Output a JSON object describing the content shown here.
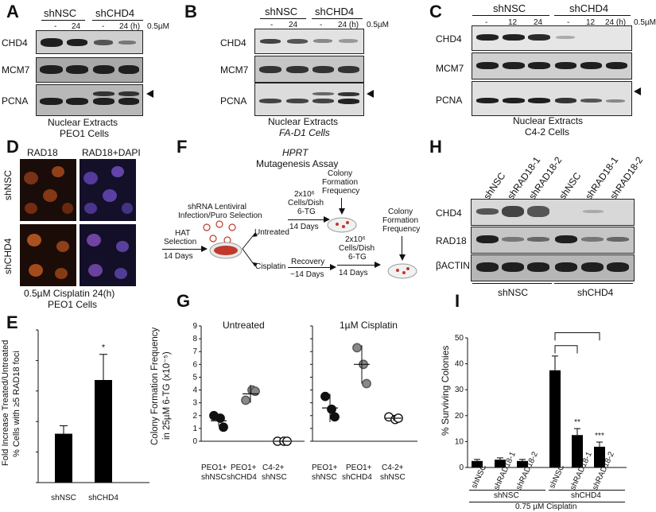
{
  "panelA": {
    "letter": "A",
    "groups": [
      "shNSC",
      "shCHD4"
    ],
    "times": [
      "-",
      "24",
      "-",
      "24 (h)"
    ],
    "dose": "0.5µM",
    "rows": [
      "CHD4",
      "MCM7",
      "PCNA"
    ],
    "caption1": "Nuclear Extracts",
    "caption2": "PEO1 Cells"
  },
  "panelB": {
    "letter": "B",
    "groups": [
      "shNSC",
      "shCHD4"
    ],
    "times": [
      "-",
      "24",
      "-",
      "24 (h)"
    ],
    "dose": "0.5µM",
    "rows": [
      "CHD4",
      "MCM7",
      "PCNA"
    ],
    "caption1": "Nuclear Extracts",
    "caption2": "FA-D1 Cells"
  },
  "panelC": {
    "letter": "C",
    "groups": [
      "shNSC",
      "shCHD4"
    ],
    "times": [
      "-",
      "12",
      "24",
      "-",
      "12",
      "24 (h)"
    ],
    "dose": "0.5µM",
    "rows": [
      "CHD4",
      "MCM7",
      "PCNA"
    ],
    "caption1": "Nuclear Extracts",
    "caption2": "C4-2 Cells"
  },
  "panelD": {
    "letter": "D",
    "cols": [
      "RAD18",
      "RAD18+DAPI"
    ],
    "rows": [
      "shNSC",
      "shCHD4"
    ],
    "caption1": "0.5µM Cisplatin 24(h)",
    "caption2": "PEO1 Cells"
  },
  "panelE": {
    "letter": "E",
    "ylabel1": "Fold Increase Treated/Untreated",
    "ylabel2": "% Cells with ≥5 RAD18 foci",
    "star": "*"
  },
  "panelF": {
    "letter": "F",
    "title1": "HPRT",
    "title2": "Mutagenesis Assay",
    "shrna1": "shRNA Lentiviral",
    "shrna2": "Infection/Puro Selection",
    "hat1": "HAT",
    "hat2": "Selection",
    "hat3": "14 Days",
    "untreated": "Untreated",
    "cisplatin": "Cisplatin",
    "plate1a": "2x10⁶",
    "plate1b": "Cells/Dish",
    "plate1c": "6-TG",
    "plate1d": "14 Days",
    "cff1": "Colony",
    "cff2": "Formation",
    "cff3": "Frequency",
    "recovery1": "Recovery",
    "recovery2": "~14 Days",
    "plate2a": "2x10⁶",
    "plate2b": "Cells/Dish",
    "plate2c": "6-TG",
    "plate2d": "14 Days",
    "cffb1": "Colony",
    "cffb2": "Formation",
    "cffb3": "Frequency"
  },
  "panelG": {
    "letter": "G",
    "ylabel1": "Colony Formation Frequency",
    "ylabel2": "in 25µM 6-TG (x10⁻⁵)",
    "left_title": "Untreated",
    "right_title": "1µM Cisplatin",
    "groups_left": [
      "PEO1+",
      "shNSC",
      "PEO1+",
      "shCHD4",
      "C4-2+",
      "shNSC"
    ],
    "groups_right": [
      "PEO1+",
      "shNSC",
      "PEO1+",
      "shCHD4",
      "C4-2+",
      "shNSC"
    ]
  },
  "panelH": {
    "letter": "H",
    "lanes": [
      "shNSC",
      "shRAD18-1",
      "shRAD18-2",
      "shNSC",
      "shRAD18-1",
      "shRAD18-2"
    ],
    "rows": [
      "CHD4",
      "RAD18",
      "βACTIN"
    ],
    "groups": [
      "shNSC",
      "shCHD4"
    ]
  },
  "panelI": {
    "letter": "I",
    "ylabel": "% Surviving Colonies",
    "lanes": [
      "shNSC",
      "shRAD18-1",
      "shRAD18-2",
      "shNSC",
      "shRAD18-1",
      "shRAD18-2"
    ],
    "groups": [
      "shNSC",
      "shCHD4"
    ],
    "treatment": "0.75 µM Cisplatin",
    "stars": [
      "**",
      "***"
    ]
  },
  "chart_data": [
    {
      "type": "bar",
      "panel": "E",
      "categories": [
        "shNSC",
        "shCHD4"
      ],
      "values": [
        0.8,
        1.68
      ],
      "errors": [
        0.13,
        0.42
      ],
      "ylim": [
        0,
        2.5
      ],
      "yticks": [
        0,
        0.5,
        1,
        1.5,
        2,
        2.5
      ],
      "ylabel": "Fold Increase Treated/Untreated % Cells with ≥5 RAD18 foci",
      "annotations": [
        {
          "category": "shCHD4",
          "text": "*"
        }
      ]
    },
    {
      "type": "scatter",
      "panel": "G-left",
      "title": "Untreated",
      "categories": [
        "PEO1+ shNSC",
        "PEO1+ shCHD4",
        "C4-2+ shNSC"
      ],
      "points": [
        [
          2.0,
          1.8,
          1.1
        ],
        [
          3.2,
          4.0,
          3.9
        ],
        [
          0.0,
          0.0,
          0.0
        ]
      ],
      "means": [
        1.6,
        3.7,
        0.0
      ],
      "errors": [
        0.4,
        0.7,
        0.05
      ],
      "ylim": [
        0,
        9
      ],
      "yticks": [
        0,
        1,
        2,
        3,
        4,
        5,
        6,
        7,
        8,
        9
      ],
      "ylabel": "Colony Formation Frequency in 25µM 6-TG (x10⁻⁵)"
    },
    {
      "type": "scatter",
      "panel": "G-right",
      "title": "1µM Cisplatin",
      "categories": [
        "PEO1+ shNSC",
        "PEO1+ shCHD4",
        "C4-2+ shNSC"
      ],
      "points": [
        [
          3.5,
          2.5,
          1.9
        ],
        [
          7.3,
          6.0,
          4.5
        ],
        [
          1.9,
          1.7,
          1.8
        ]
      ],
      "means": [
        2.6,
        6.0,
        1.8
      ],
      "errors": [
        1.1,
        1.5,
        0.2
      ],
      "ylim": [
        0,
        9
      ]
    },
    {
      "type": "bar",
      "panel": "I",
      "categories": [
        "shNSC",
        "shRAD18-1",
        "shRAD18-2",
        "shNSC",
        "shRAD18-1",
        "shRAD18-2"
      ],
      "groups": [
        "shNSC",
        "shNSC",
        "shNSC",
        "shCHD4",
        "shCHD4",
        "shCHD4"
      ],
      "values": [
        2.5,
        3.0,
        2.5,
        37.5,
        12.5,
        8.0
      ],
      "errors": [
        0.6,
        0.7,
        0.6,
        5.5,
        2.5,
        1.8
      ],
      "ylim": [
        0,
        50
      ],
      "yticks": [
        0,
        10,
        20,
        30,
        40,
        50
      ],
      "ylabel": "% Surviving Colonies",
      "annotations": [
        {
          "category": 4,
          "text": "**"
        },
        {
          "category": 5,
          "text": "***"
        }
      ]
    }
  ]
}
